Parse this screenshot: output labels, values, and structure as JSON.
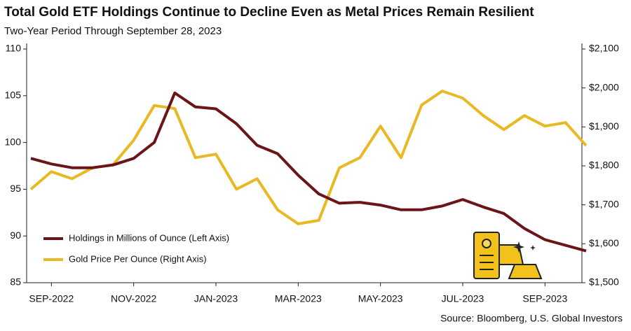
{
  "chart_data": {
    "type": "line",
    "title": "Total Gold ETF Holdings Continue to Decline Even as Metal Prices Remain Resilient",
    "subtitle": "Two-Year Period Through September 28, 2023",
    "source": "Source: Bloomberg, U.S. Global Investors",
    "categories": [
      null,
      "SEP-2022",
      null,
      null,
      null,
      "NOV-2022",
      null,
      null,
      null,
      "JAN-2023",
      null,
      null,
      null,
      "MAR-2023",
      null,
      null,
      null,
      "MAY-2023",
      null,
      null,
      null,
      "JUL-2023",
      null,
      null,
      null,
      "SEP-2023",
      null,
      null
    ],
    "ylim": [
      85,
      110
    ],
    "yticks": [
      85,
      90,
      95,
      100,
      105,
      110
    ],
    "y2lim": [
      1500,
      2100
    ],
    "y2ticks": [
      {
        "value": 1500,
        "label": "$1,500"
      },
      {
        "value": 1600,
        "label": "$1,600"
      },
      {
        "value": 1700,
        "label": "$1,700"
      },
      {
        "value": 1800,
        "label": "$1,800"
      },
      {
        "value": 1900,
        "label": "$1,900"
      },
      {
        "value": 2000,
        "label": "$2,000"
      },
      {
        "value": 2100,
        "label": "$2,100"
      }
    ],
    "grid": false,
    "legend": "lower-left",
    "series": [
      {
        "name": "Holdings in Millions of Ounce (Left Axis)",
        "color": "#6b1518",
        "axis": "y",
        "values": [
          98.3,
          97.7,
          97.3,
          97.3,
          97.6,
          98.3,
          100.0,
          105.3,
          103.8,
          103.6,
          102.0,
          99.7,
          98.8,
          96.5,
          94.5,
          93.5,
          93.6,
          93.3,
          92.8,
          92.8,
          93.2,
          93.9,
          93.1,
          92.4,
          90.8,
          89.6,
          89.0,
          88.4
        ]
      },
      {
        "name": "Gold Price Per Ounce (Right Axis)",
        "color": "#e8b923",
        "axis": "y2",
        "values": [
          1740,
          1785,
          1767,
          1795,
          1803,
          1866,
          1955,
          1947,
          1821,
          1830,
          1740,
          1767,
          1687,
          1651,
          1660,
          1795,
          1821,
          1902,
          1821,
          1956,
          1992,
          1974,
          1929,
          1893,
          1929,
          1902,
          1911,
          1852
        ]
      }
    ]
  }
}
